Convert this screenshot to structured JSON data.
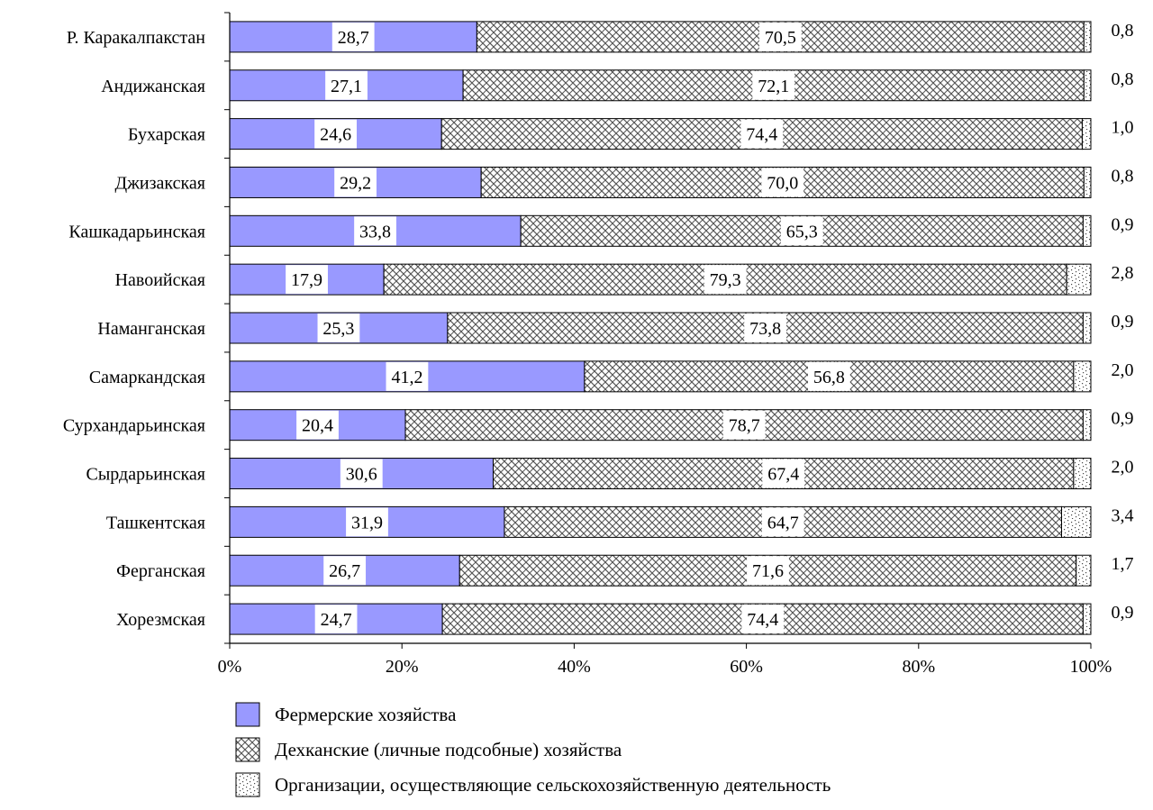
{
  "chart_data": {
    "type": "bar",
    "orientation": "horizontal",
    "stacked": "percent",
    "categories": [
      "Р. Каракалпакстан",
      "Андижанская",
      "Бухарская",
      "Джизакская",
      "Кашкадарьинская",
      "Навоийская",
      "Наманганская",
      "Самаркандская",
      "Сурхандарьинская",
      "Сырдарьинская",
      "Ташкентская",
      "Ферганская",
      "Хорезмская"
    ],
    "series": [
      {
        "name": "Фермерские хозяйства",
        "values": [
          28.7,
          27.1,
          24.6,
          29.2,
          33.8,
          17.9,
          25.3,
          41.2,
          20.4,
          30.6,
          31.9,
          26.7,
          24.7
        ],
        "labels": [
          "28,7",
          "27,1",
          "24,6",
          "29,2",
          "33,8",
          "17,9",
          "25,3",
          "41,2",
          "20,4",
          "30,6",
          "31,9",
          "26,7",
          "24,7"
        ]
      },
      {
        "name": "Дехканские (личные подсобные) хозяйства",
        "values": [
          70.5,
          72.1,
          74.4,
          70.0,
          65.3,
          79.3,
          73.8,
          56.8,
          78.7,
          67.4,
          64.7,
          71.6,
          74.4
        ],
        "labels": [
          "70,5",
          "72,1",
          "74,4",
          "70,0",
          "65,3",
          "79,3",
          "73,8",
          "56,8",
          "78,7",
          "67,4",
          "64,7",
          "71,6",
          "74,4"
        ]
      },
      {
        "name": "Организации, осуществляющие сельскохозяйственную деятельность",
        "values": [
          0.8,
          0.8,
          1.0,
          0.8,
          0.9,
          2.8,
          0.9,
          2.0,
          0.9,
          2.0,
          3.4,
          1.7,
          0.9
        ],
        "labels": [
          "0,8",
          "0,8",
          "1,0",
          "0,8",
          "0,9",
          "2,8",
          "0,9",
          "2,0",
          "0,9",
          "2,0",
          "3,4",
          "1,7",
          "0,9"
        ]
      }
    ],
    "x_ticks": [
      "0%",
      "20%",
      "40%",
      "60%",
      "80%",
      "100%"
    ],
    "xlim": [
      0,
      100
    ],
    "grid": false,
    "legend_position": "bottom",
    "colors": [
      "#9999ff",
      "#ffffff",
      "#ffffff"
    ]
  }
}
